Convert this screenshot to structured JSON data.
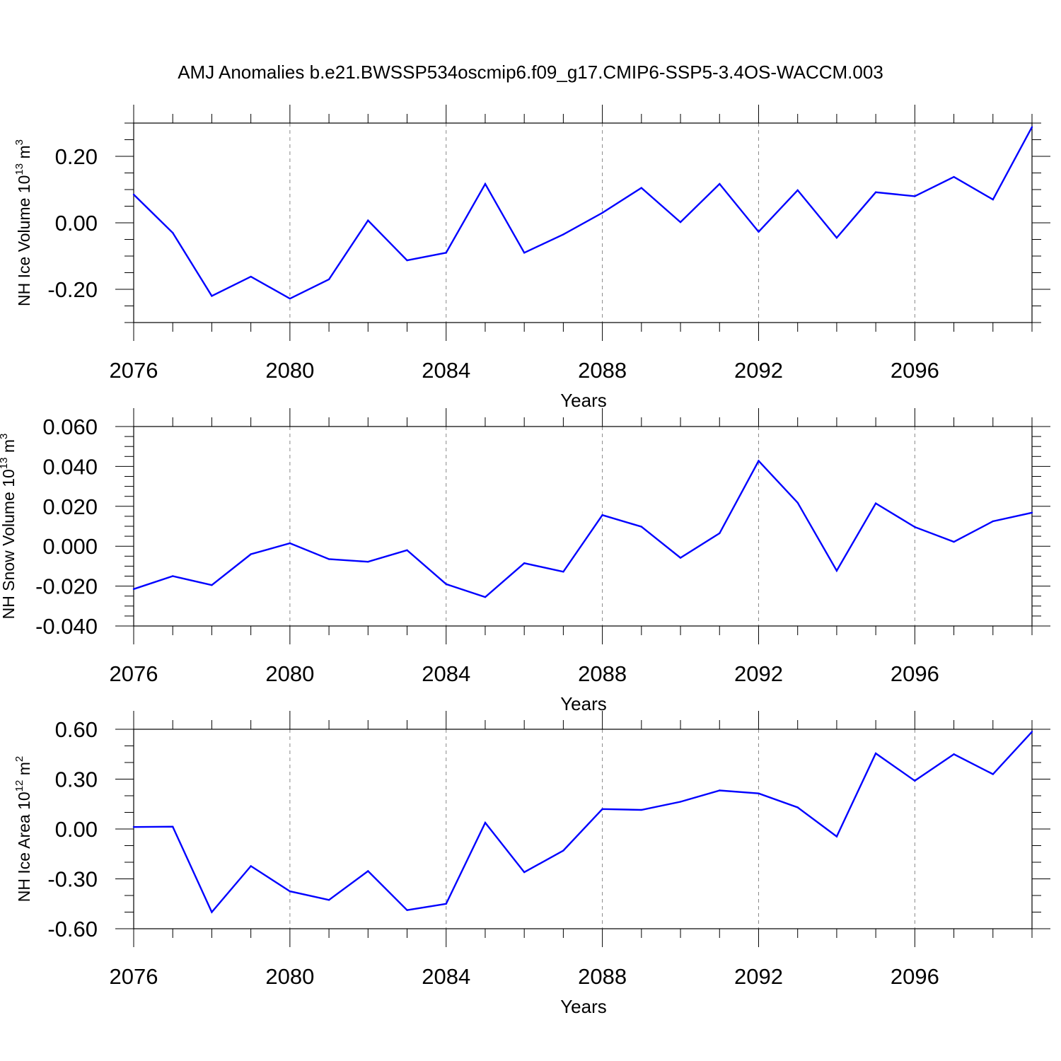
{
  "title": "AMJ Anomalies b.e21.BWSSP534oscmip6.f09_g17.CMIP6-SSP5-3.4OS-WACCM.003",
  "colors": {
    "line": "#0000ff",
    "axis": "#000000",
    "grid": "#888888"
  },
  "chart_data": [
    {
      "type": "line",
      "title": "AMJ Anomalies b.e21.BWSSP534oscmip6.f09_g17.CMIP6-SSP5-3.4OS-WACCM.003",
      "ylabel": "NH Ice Volume 10",
      "ylabel_exp": "13",
      "ylabel_unit": " m",
      "ylabel_unit_exp": "3",
      "xlabel": "Years",
      "x": [
        2076,
        2077,
        2078,
        2079,
        2080,
        2081,
        2082,
        2083,
        2084,
        2085,
        2086,
        2087,
        2088,
        2089,
        2090,
        2091,
        2092,
        2093,
        2094,
        2095,
        2096,
        2097,
        2098,
        2099
      ],
      "values": [
        0.085,
        -0.03,
        -0.22,
        -0.162,
        -0.228,
        -0.17,
        0.007,
        -0.113,
        -0.09,
        0.117,
        -0.09,
        -0.035,
        0.03,
        0.105,
        0.002,
        0.117,
        -0.027,
        0.098,
        -0.045,
        0.092,
        0.08,
        0.138,
        0.07,
        0.288
      ],
      "xlim": [
        2076,
        2099
      ],
      "ylim": [
        -0.3,
        0.3
      ],
      "xticks": [
        2076,
        2080,
        2084,
        2088,
        2092,
        2096
      ],
      "xtick_labels": [
        "2076",
        "2080",
        "2084",
        "2088",
        "2092",
        "2096"
      ],
      "yticks": [
        -0.2,
        0.0,
        0.2
      ],
      "ytick_labels": [
        "-0.20",
        "0.00",
        "0.20"
      ],
      "yminor_step": 0.05
    },
    {
      "type": "line",
      "ylabel": "NH Snow Volume 10",
      "ylabel_exp": "13",
      "ylabel_unit": " m",
      "ylabel_unit_exp": "3",
      "xlabel": "Years",
      "x": [
        2076,
        2077,
        2078,
        2079,
        2080,
        2081,
        2082,
        2083,
        2084,
        2085,
        2086,
        2087,
        2088,
        2089,
        2090,
        2091,
        2092,
        2093,
        2094,
        2095,
        2096,
        2097,
        2098,
        2099
      ],
      "values": [
        -0.0215,
        -0.015,
        -0.0195,
        -0.004,
        0.0015,
        -0.0065,
        -0.0078,
        -0.002,
        -0.019,
        -0.0255,
        -0.0085,
        -0.0128,
        0.0156,
        0.0098,
        -0.0058,
        0.0065,
        0.0428,
        0.0218,
        -0.0123,
        0.0215,
        0.0096,
        0.0022,
        0.0125,
        0.0168
      ],
      "xlim": [
        2076,
        2099
      ],
      "ylim": [
        -0.04,
        0.06
      ],
      "xticks": [
        2076,
        2080,
        2084,
        2088,
        2092,
        2096
      ],
      "xtick_labels": [
        "2076",
        "2080",
        "2084",
        "2088",
        "2092",
        "2096"
      ],
      "yticks": [
        -0.04,
        -0.02,
        0.0,
        0.02,
        0.04,
        0.06
      ],
      "ytick_labels": [
        "-0.040",
        "-0.020",
        "0.000",
        "0.020",
        "0.040",
        "0.060"
      ],
      "yminor_step": 0.005
    },
    {
      "type": "line",
      "ylabel": "NH Ice Area 10",
      "ylabel_exp": "12",
      "ylabel_unit": " m",
      "ylabel_unit_exp": "2",
      "xlabel": "Years",
      "x": [
        2076,
        2077,
        2078,
        2079,
        2080,
        2081,
        2082,
        2083,
        2084,
        2085,
        2086,
        2087,
        2088,
        2089,
        2090,
        2091,
        2092,
        2093,
        2094,
        2095,
        2096,
        2097,
        2098,
        2099
      ],
      "values": [
        0.012,
        0.014,
        -0.5,
        -0.223,
        -0.375,
        -0.427,
        -0.253,
        -0.488,
        -0.45,
        0.038,
        -0.26,
        -0.13,
        0.12,
        0.115,
        0.164,
        0.232,
        0.214,
        0.13,
        -0.045,
        0.455,
        0.29,
        0.45,
        0.33,
        0.585
      ],
      "xlim": [
        2076,
        2099
      ],
      "ylim": [
        -0.6,
        0.6
      ],
      "xticks": [
        2076,
        2080,
        2084,
        2088,
        2092,
        2096
      ],
      "xtick_labels": [
        "2076",
        "2080",
        "2084",
        "2088",
        "2092",
        "2096"
      ],
      "yticks": [
        -0.6,
        -0.3,
        0.0,
        0.3,
        0.6
      ],
      "ytick_labels": [
        "-0.60",
        "-0.30",
        "0.00",
        "0.30",
        "0.60"
      ],
      "yminor_step": 0.1
    }
  ]
}
